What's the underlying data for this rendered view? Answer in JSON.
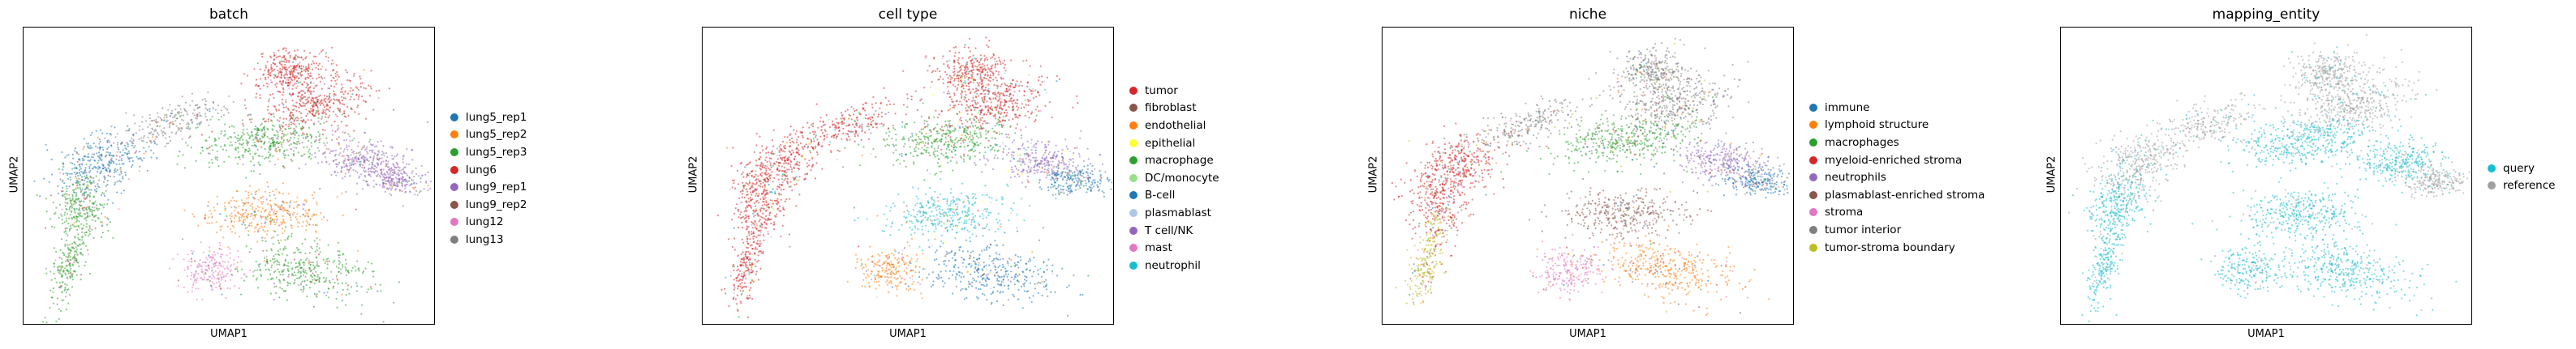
{
  "chart_data": [
    {
      "type": "scatter",
      "title": "batch",
      "xlabel": "UMAP1",
      "ylabel": "UMAP2",
      "grid": false,
      "legend_placement": "right",
      "legend": [
        {
          "label": "lung5_rep1",
          "color": "#1f77b4"
        },
        {
          "label": "lung5_rep2",
          "color": "#ff7f0e"
        },
        {
          "label": "lung5_rep3",
          "color": "#2ca02c"
        },
        {
          "label": "lung6",
          "color": "#d62728"
        },
        {
          "label": "lung9_rep1",
          "color": "#9467bd"
        },
        {
          "label": "lung9_rep2",
          "color": "#8c564b"
        },
        {
          "label": "lung12",
          "color": "#e377c2"
        },
        {
          "label": "lung13",
          "color": "#7f7f7f"
        }
      ]
    },
    {
      "type": "scatter",
      "title": "cell type",
      "xlabel": "UMAP1",
      "ylabel": "UMAP2",
      "grid": false,
      "legend_placement": "right",
      "legend": [
        {
          "label": "tumor",
          "color": "#d62728"
        },
        {
          "label": "fibroblast",
          "color": "#8c564b"
        },
        {
          "label": "endothelial",
          "color": "#ff7f0e"
        },
        {
          "label": "epithelial",
          "color": "#ffff33"
        },
        {
          "label": "macrophage",
          "color": "#2ca02c"
        },
        {
          "label": "DC/monocyte",
          "color": "#98df8a"
        },
        {
          "label": "B-cell",
          "color": "#1f77b4"
        },
        {
          "label": "plasmablast",
          "color": "#aec7e8"
        },
        {
          "label": "T cell/NK",
          "color": "#9467bd"
        },
        {
          "label": "mast",
          "color": "#e377c2"
        },
        {
          "label": "neutrophil",
          "color": "#17becf"
        }
      ]
    },
    {
      "type": "scatter",
      "title": "niche",
      "xlabel": "UMAP1",
      "ylabel": "UMAP2",
      "grid": false,
      "legend_placement": "right",
      "legend": [
        {
          "label": "immune",
          "color": "#1f77b4"
        },
        {
          "label": "lymphoid structure",
          "color": "#ff7f0e"
        },
        {
          "label": "macrophages",
          "color": "#2ca02c"
        },
        {
          "label": "myeloid-enriched stroma",
          "color": "#d62728"
        },
        {
          "label": "neutrophils",
          "color": "#9467bd"
        },
        {
          "label": "plasmablast-enriched stroma",
          "color": "#8c564b"
        },
        {
          "label": "stroma",
          "color": "#e377c2"
        },
        {
          "label": "tumor interior",
          "color": "#7f7f7f"
        },
        {
          "label": "tumor-stroma boundary",
          "color": "#bcbd22"
        }
      ]
    },
    {
      "type": "scatter",
      "title": "mapping_entity",
      "xlabel": "UMAP1",
      "ylabel": "UMAP2",
      "grid": false,
      "legend_placement": "right",
      "legend": [
        {
          "label": "query",
          "color": "#17becf"
        },
        {
          "label": "reference",
          "color": "#a0a0a0"
        }
      ]
    }
  ]
}
